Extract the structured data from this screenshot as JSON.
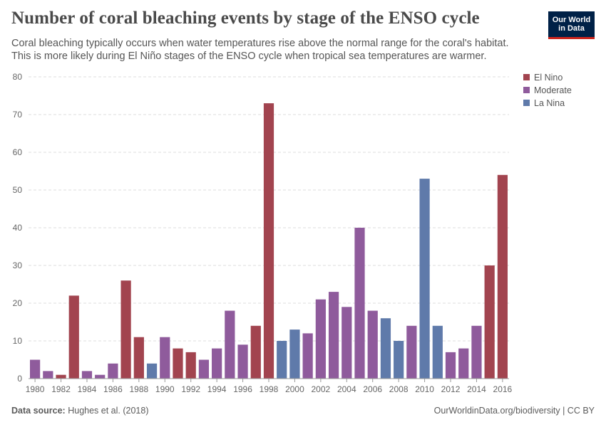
{
  "header": {
    "title": "Number of coral bleaching events by stage of the ENSO cycle",
    "subtitle_line1": "Coral bleaching typically occurs when water temperatures rise above the normal range for the coral's habitat.",
    "subtitle_line2": "This is more likely during El Niño stages of the ENSO cycle when tropical sea temperatures are warmer."
  },
  "logo": {
    "line1": "Our World",
    "line2": "in Data",
    "bg": "#002147",
    "accent": "#ce261e"
  },
  "footer": {
    "source_label": "Data source:",
    "source_text": "Hughes et al. (2018)",
    "url_text": "OurWorldinData.org/biodiversity | CC BY"
  },
  "chart_data": {
    "type": "bar",
    "title": "Number of coral bleaching events by stage of the ENSO cycle",
    "xlabel": "",
    "ylabel": "",
    "ylim": [
      0,
      80
    ],
    "yticks": [
      0,
      10,
      20,
      30,
      40,
      50,
      60,
      70,
      80
    ],
    "xticks": [
      1980,
      1982,
      1984,
      1986,
      1988,
      1990,
      1992,
      1994,
      1996,
      1998,
      2000,
      2002,
      2004,
      2006,
      2008,
      2010,
      2012,
      2014,
      2016
    ],
    "grid": true,
    "legend_position": "right",
    "legend": [
      {
        "name": "El Nino",
        "color": "#a2444f"
      },
      {
        "name": "Moderate",
        "color": "#8f5b9c"
      },
      {
        "name": "La Nina",
        "color": "#5f7aaa"
      }
    ],
    "years": [
      1980,
      1981,
      1982,
      1983,
      1984,
      1985,
      1986,
      1987,
      1988,
      1989,
      1990,
      1991,
      1992,
      1993,
      1994,
      1995,
      1996,
      1997,
      1998,
      1999,
      2000,
      2001,
      2002,
      2003,
      2004,
      2005,
      2006,
      2007,
      2008,
      2009,
      2010,
      2011,
      2012,
      2013,
      2014,
      2015,
      2016
    ],
    "values": [
      5,
      2,
      1,
      22,
      2,
      1,
      4,
      26,
      11,
      4,
      11,
      8,
      7,
      5,
      8,
      18,
      9,
      14,
      73,
      10,
      13,
      12,
      21,
      23,
      19,
      40,
      18,
      16,
      10,
      14,
      53,
      14,
      7,
      8,
      14,
      30,
      54
    ],
    "stage": [
      "Moderate",
      "Moderate",
      "El Nino",
      "El Nino",
      "Moderate",
      "Moderate",
      "Moderate",
      "El Nino",
      "El Nino",
      "La Nina",
      "Moderate",
      "El Nino",
      "El Nino",
      "Moderate",
      "Moderate",
      "Moderate",
      "Moderate",
      "El Nino",
      "El Nino",
      "La Nina",
      "La Nina",
      "Moderate",
      "Moderate",
      "Moderate",
      "Moderate",
      "Moderate",
      "Moderate",
      "La Nina",
      "La Nina",
      "Moderate",
      "La Nina",
      "La Nina",
      "Moderate",
      "Moderate",
      "Moderate",
      "El Nino",
      "El Nino"
    ]
  }
}
